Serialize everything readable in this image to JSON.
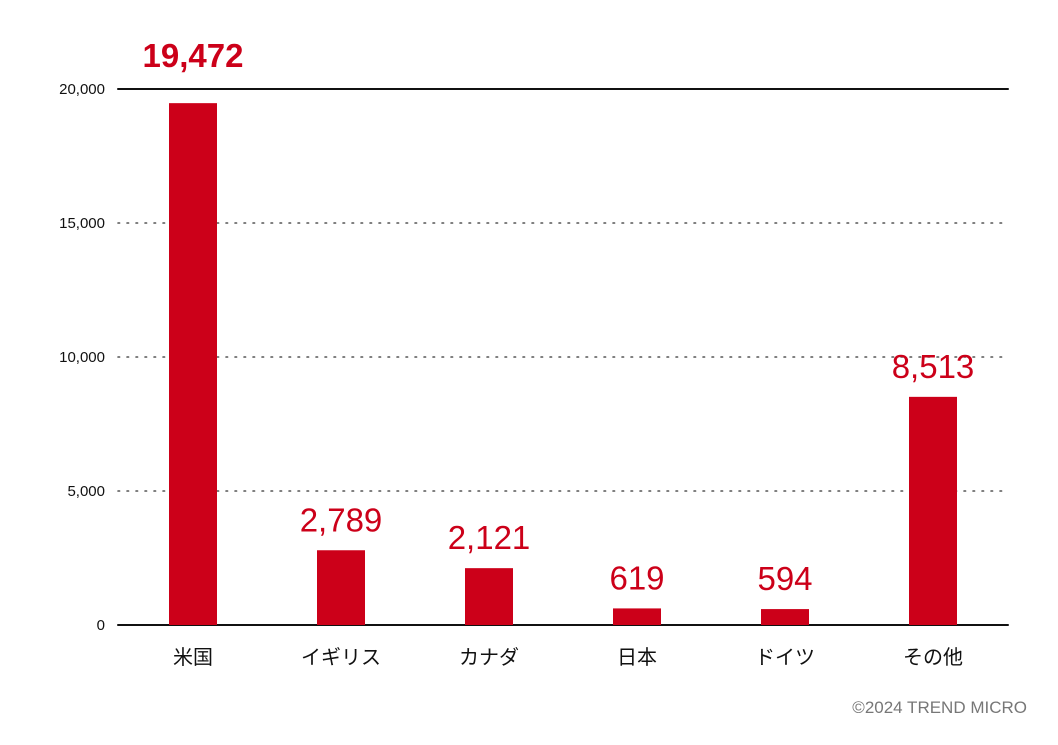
{
  "chart_data": {
    "type": "bar",
    "categories": [
      "米国",
      "イギリス",
      "カナダ",
      "日本",
      "ドイツ",
      "その他"
    ],
    "values": [
      19472,
      2789,
      2121,
      619,
      594,
      8513
    ],
    "value_labels": [
      "19,472",
      "2,789",
      "2,121",
      "619",
      "594",
      "8,513"
    ],
    "y_ticks": [
      0,
      5000,
      10000,
      15000,
      20000
    ],
    "y_tick_labels": [
      "0",
      "5,000",
      "10,000",
      "15,000",
      "20,000"
    ],
    "ylim": [
      0,
      20000
    ],
    "grid": "dotted horizontal"
  },
  "colors": {
    "bar": "#cc0019",
    "label": "#cc0019",
    "axis": "#111111",
    "grid": "#555555"
  },
  "copyright": "©2024 TREND MICRO"
}
